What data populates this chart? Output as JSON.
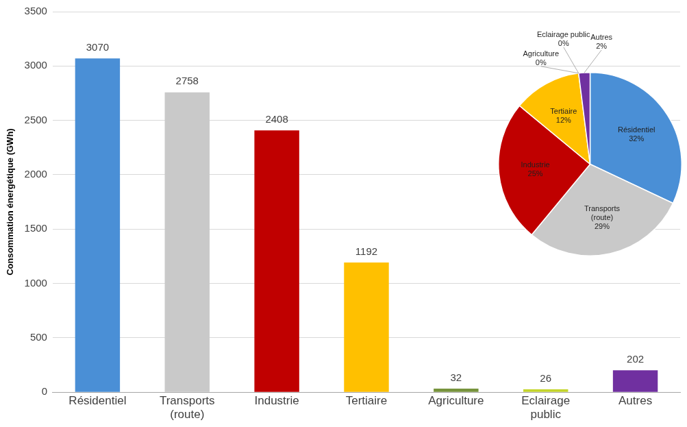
{
  "chart_data": [
    {
      "type": "bar",
      "ylabel": "Consommation énergétique (GWh)",
      "categories": [
        "Résidentiel",
        "Transports (route)",
        "Industrie",
        "Tertiaire",
        "Agriculture",
        "Eclairage public",
        "Autres"
      ],
      "values": [
        3070,
        2758,
        2408,
        1192,
        32,
        26,
        202
      ],
      "colors": [
        "#4a8fd6",
        "#c9c9c9",
        "#c00000",
        "#ffc000",
        "#77933c",
        "#c4d52c",
        "#7030a0"
      ],
      "ylim": [
        0,
        3500
      ],
      "yticks": [
        0,
        500,
        1000,
        1500,
        2000,
        2500,
        3000,
        3500
      ],
      "grid": "y",
      "data_labels": true,
      "legend": false
    },
    {
      "type": "pie",
      "categories": [
        "Résidentiel",
        "Transports (route)",
        "Industrie",
        "Tertiaire",
        "Agriculture",
        "Eclairage public",
        "Autres"
      ],
      "values": [
        32,
        29,
        25,
        12,
        0,
        0,
        2
      ],
      "value_labels": [
        "32%",
        "29%",
        "25%",
        "12%",
        "0%",
        "0%",
        "2%"
      ],
      "colors": [
        "#4a8fd6",
        "#c9c9c9",
        "#c00000",
        "#ffc000",
        "#77933c",
        "#c4d52c",
        "#7030a0"
      ],
      "legend": false
    }
  ]
}
